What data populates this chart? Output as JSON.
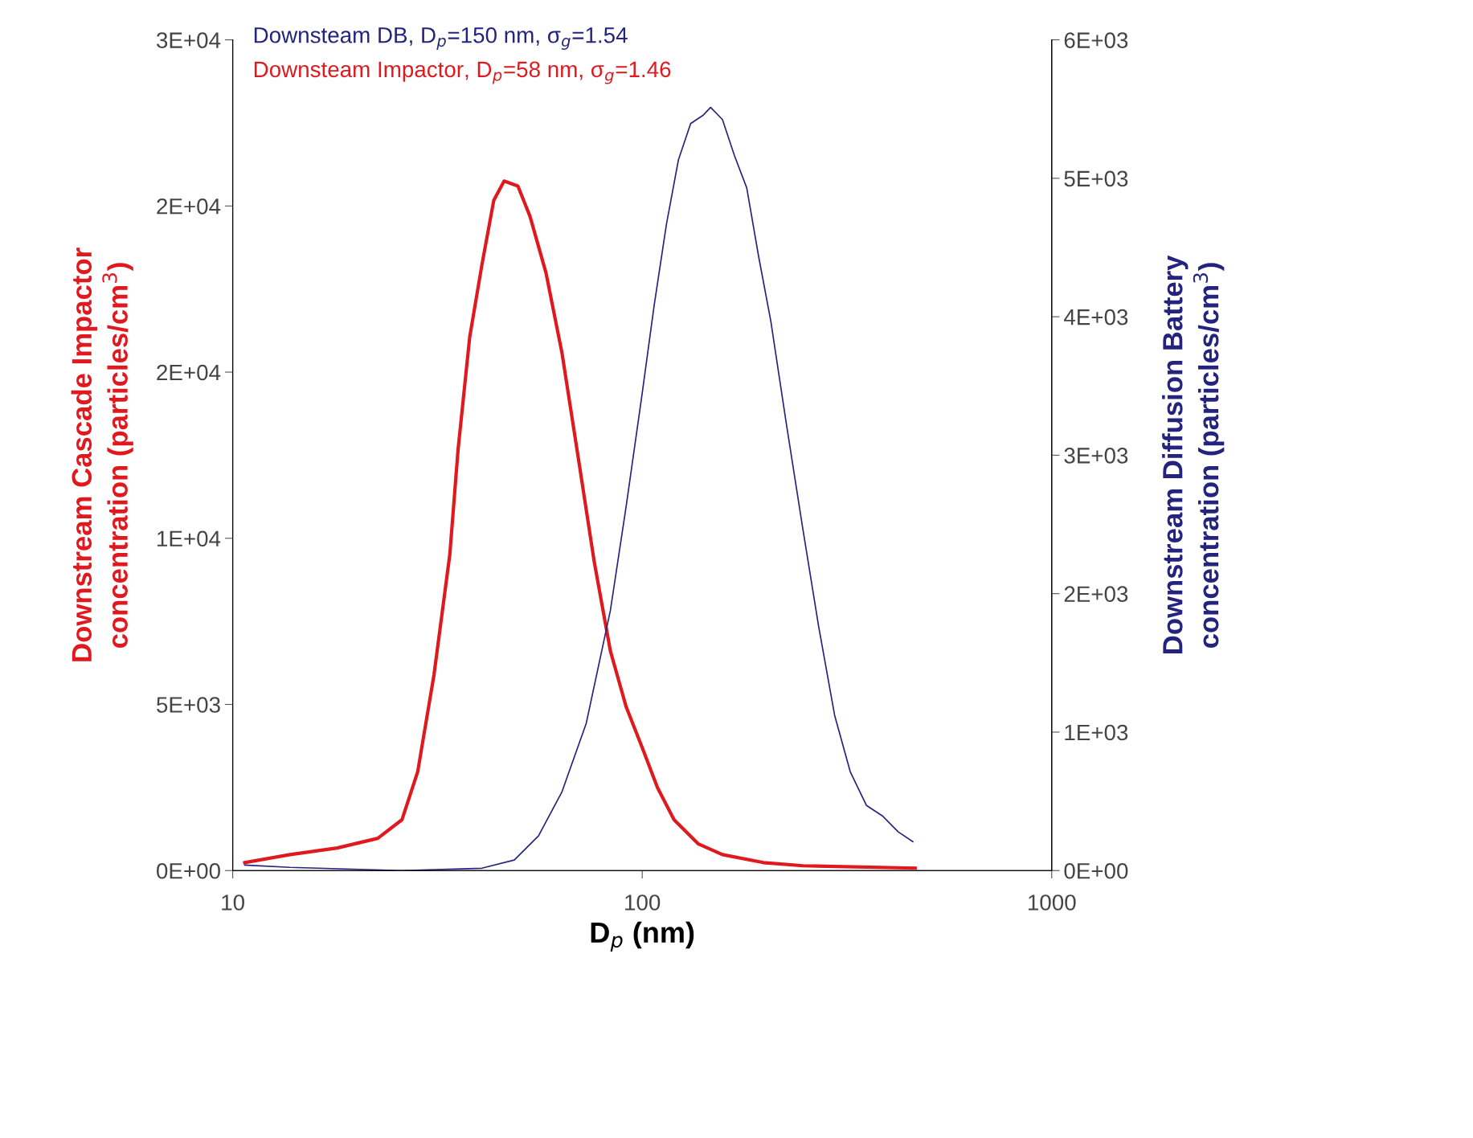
{
  "chart_data": {
    "type": "line",
    "xlabel": "D$_{p}$ (nm)",
    "ylabel": "Downstream Cascade Impactor\nconcentration (particles/cm$^{3}$)",
    "y2label": "Downstream Diffusion Battery\nconcentration (particles/cm$^{3}$)",
    "log": "x",
    "xlim": [
      10,
      1000
    ],
    "xticks": [
      10,
      100,
      1000
    ],
    "ylim": [
      0,
      25000
    ],
    "yticks": [
      {
        "value": 0,
        "label": "0E+00"
      },
      {
        "value": 5000,
        "label": "5E+03"
      },
      {
        "value": 10000,
        "label": "1E+04"
      },
      {
        "value": 15000,
        "label": "2E+04"
      },
      {
        "value": 20000,
        "label": "2E+04"
      },
      {
        "value": 25000,
        "label": "3E+04"
      }
    ],
    "y2lim": [
      0,
      6000
    ],
    "y2ticks": [
      {
        "value": 0,
        "label": "0E+00"
      },
      {
        "value": 1000,
        "label": "1E+03"
      },
      {
        "value": 2000,
        "label": "2E+03"
      },
      {
        "value": 3000,
        "label": "3E+03"
      },
      {
        "value": 4000,
        "label": "4E+03"
      },
      {
        "value": 5000,
        "label": "5E+03"
      },
      {
        "value": 6000,
        "label": "6E+03"
      }
    ],
    "grid": false,
    "legend": "top left",
    "marker": "none",
    "line_style": "solid",
    "series": [
      {
        "name": "Downsteam DB, D$_{p}$=150 nm, σ$_{g}$=1.54",
        "color": "#24247f",
        "axis": "y2",
        "x": [
          10.7,
          13.8,
          25.9,
          40.6,
          48.7,
          55.8,
          63.7,
          73.0,
          83.6,
          91.4,
          100,
          107,
          114.6,
          122.6,
          131.3,
          140.5,
          146.9,
          157,
          168,
          180,
          192.4,
          206,
          225.2,
          247,
          269.7,
          295,
          322,
          353,
          386,
          422,
          458
        ],
        "values": [
          40,
          23,
          0,
          17,
          76,
          250,
          570,
          1064,
          1878,
          2634,
          3448,
          4087,
          4669,
          5134,
          5395,
          5453,
          5512,
          5424,
          5163,
          4930,
          4436,
          3971,
          3215,
          2459,
          1762,
          1122,
          715,
          470,
          395,
          279,
          209
        ]
      },
      {
        "name": "Downsteam Impactor, D$_{p}$=58 nm, σ$_{g}$=1.46",
        "color": "#e0191e",
        "axis": "y",
        "x": [
          10.7,
          13.8,
          18.0,
          22.6,
          25.9,
          28.3,
          31.0,
          33.9,
          35.5,
          37.9,
          40.6,
          43.4,
          46.0,
          49.7,
          53.2,
          58.2,
          63.7,
          69.8,
          76.4,
          83.6,
          91.4,
          100,
          109,
          119.6,
          137.2,
          157,
          197.6,
          247,
          464
        ],
        "values": [
          240,
          480,
          680,
          970,
          1530,
          2980,
          5880,
          9520,
          12660,
          16050,
          18230,
          20170,
          20750,
          20600,
          19690,
          17990,
          15570,
          12420,
          9270,
          6610,
          4920,
          3700,
          2490,
          1530,
          800,
          480,
          240,
          145,
          73
        ]
      }
    ]
  }
}
